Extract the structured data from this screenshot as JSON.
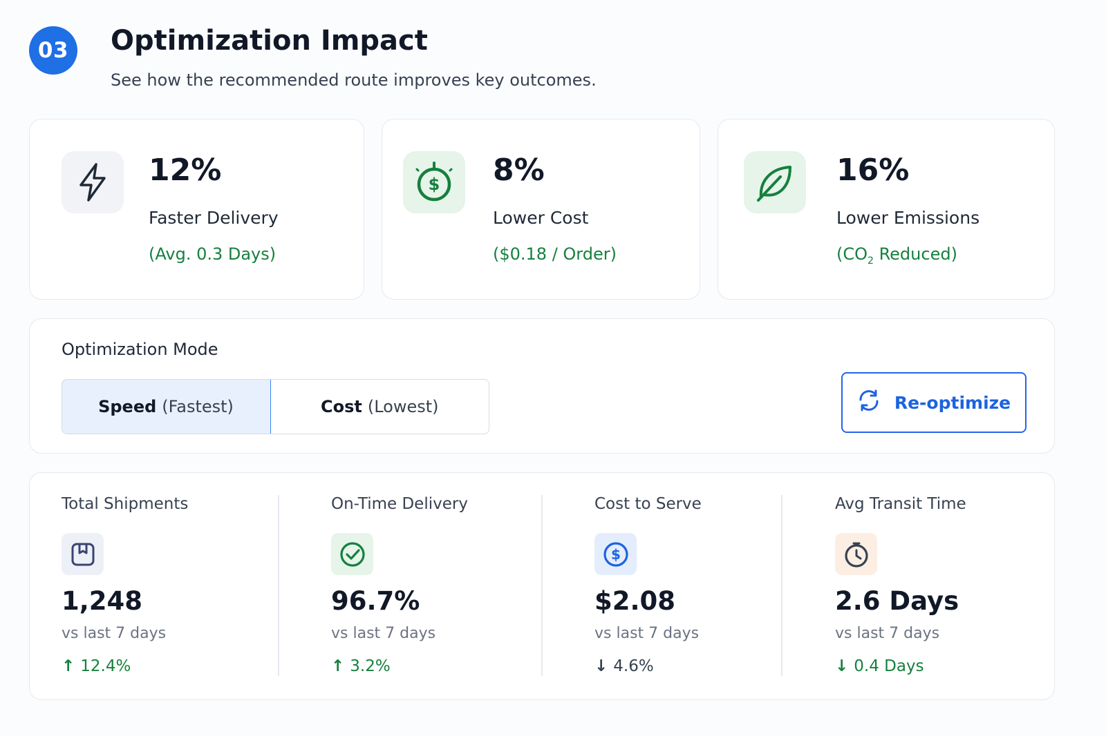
{
  "header": {
    "step_number": "03",
    "title": "Optimization Impact",
    "subtitle": "See how the recommended route improves key outcomes."
  },
  "impact_cards": [
    {
      "icon": "lightning-icon",
      "value": "12%",
      "label": "Faster Delivery",
      "detail": "(Avg. 0.3 Days)"
    },
    {
      "icon": "dollar-coin-icon",
      "value": "8%",
      "label": "Lower Cost",
      "detail": "($0.18 / Order)"
    },
    {
      "icon": "leaf-icon",
      "value": "16%",
      "label": "Lower Emissions",
      "detail_prefix": "(CO",
      "detail_sub": "2",
      "detail_suffix": " Reduced)"
    }
  ],
  "optimization_mode": {
    "label": "Optimization Mode",
    "options": [
      {
        "strong": "Speed",
        "paren": "(Fastest)",
        "selected": true
      },
      {
        "strong": "Cost",
        "paren": "(Lowest)",
        "selected": false
      }
    ],
    "reoptimize_label": "Re-optimize"
  },
  "stats": [
    {
      "title": "Total Shipments",
      "icon": "package-icon",
      "value": "1,248",
      "compare": "vs last 7 days",
      "arrow": "↑",
      "change": "12.4%",
      "change_color": "#15803d"
    },
    {
      "title": "On-Time Delivery",
      "icon": "check-circle-icon",
      "value": "96.7%",
      "compare": "vs last 7 days",
      "arrow": "↑",
      "change": "3.2%",
      "change_color": "#15803d"
    },
    {
      "title": "Cost to Serve",
      "icon": "dollar-circle-icon",
      "value": "$2.08",
      "compare": "vs last 7 days",
      "arrow": "↓",
      "change": "4.6%",
      "change_color": "#374151"
    },
    {
      "title": "Avg Transit Time",
      "icon": "clock-icon",
      "value": "2.6 Days",
      "compare": "vs last 7 days",
      "arrow": "↓",
      "change": "0.4 Days",
      "change_color": "#15803d"
    }
  ],
  "colors": {
    "accent": "#1f6fe5",
    "positive": "#15803d",
    "neutral_change": "#374151"
  }
}
